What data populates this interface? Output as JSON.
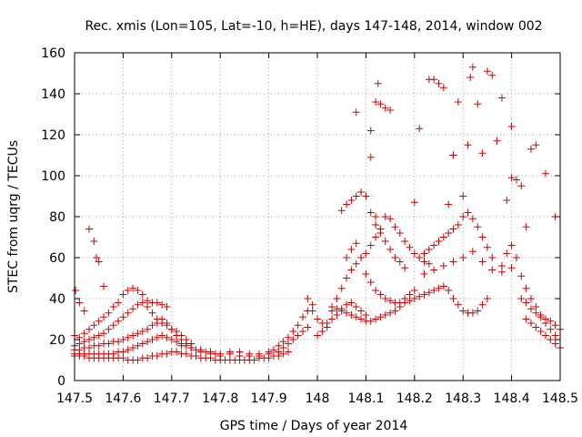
{
  "chart_data": {
    "type": "scatter",
    "title": "Rec. xmis (Lon=105, Lat=-10, h=HE), days 147-148, 2014, window 002",
    "xlabel": "GPS time / Days of year 2014",
    "ylabel": "STEC from uqrg / TECUs",
    "xlim": [
      147.5,
      148.5
    ],
    "ylim": [
      0,
      160
    ],
    "xticks": [
      147.5,
      147.6,
      147.7,
      147.8,
      147.9,
      148,
      148.1,
      148.2,
      148.3,
      148.4,
      148.5
    ],
    "xtick_labels": [
      "147.5",
      "147.6",
      "147.7",
      "147.8",
      "147.9",
      "148",
      "148.1",
      "148.2",
      "148.3",
      "148.4",
      "148.5"
    ],
    "yticks": [
      0,
      20,
      40,
      60,
      80,
      100,
      120,
      140,
      160
    ],
    "ytick_labels": [
      "0",
      "20",
      "40",
      "60",
      "80",
      "100",
      "120",
      "140",
      "160"
    ],
    "grid": true,
    "marker": "+",
    "color": "#cc0000",
    "points": [
      [
        147.502,
        44
      ],
      [
        147.51,
        38
      ],
      [
        147.52,
        34
      ],
      [
        147.53,
        74
      ],
      [
        147.54,
        68
      ],
      [
        147.545,
        60
      ],
      [
        147.55,
        58
      ],
      [
        147.56,
        46
      ],
      [
        147.5,
        22
      ],
      [
        147.51,
        21
      ],
      [
        147.52,
        23
      ],
      [
        147.53,
        25
      ],
      [
        147.54,
        27
      ],
      [
        147.55,
        29
      ],
      [
        147.56,
        31
      ],
      [
        147.57,
        33
      ],
      [
        147.58,
        36
      ],
      [
        147.59,
        38
      ],
      [
        147.6,
        42
      ],
      [
        147.61,
        44
      ],
      [
        147.62,
        45
      ],
      [
        147.63,
        44
      ],
      [
        147.64,
        42
      ],
      [
        147.65,
        39
      ],
      [
        147.66,
        38
      ],
      [
        147.67,
        38
      ],
      [
        147.68,
        37
      ],
      [
        147.69,
        36
      ],
      [
        147.5,
        17
      ],
      [
        147.51,
        18
      ],
      [
        147.52,
        19
      ],
      [
        147.53,
        20
      ],
      [
        147.54,
        21
      ],
      [
        147.55,
        22
      ],
      [
        147.56,
        23
      ],
      [
        147.57,
        25
      ],
      [
        147.58,
        27
      ],
      [
        147.59,
        29
      ],
      [
        147.6,
        31
      ],
      [
        147.61,
        33
      ],
      [
        147.62,
        35
      ],
      [
        147.63,
        37
      ],
      [
        147.64,
        38
      ],
      [
        147.65,
        36
      ],
      [
        147.66,
        33
      ],
      [
        147.67,
        30
      ],
      [
        147.68,
        28
      ],
      [
        147.69,
        27
      ],
      [
        147.7,
        25
      ],
      [
        147.71,
        24
      ],
      [
        147.72,
        22
      ],
      [
        147.73,
        20
      ],
      [
        147.74,
        18
      ],
      [
        147.5,
        15
      ],
      [
        147.51,
        15
      ],
      [
        147.52,
        16
      ],
      [
        147.53,
        16
      ],
      [
        147.54,
        17
      ],
      [
        147.55,
        17
      ],
      [
        147.56,
        18
      ],
      [
        147.57,
        18
      ],
      [
        147.58,
        19
      ],
      [
        147.59,
        19
      ],
      [
        147.6,
        20
      ],
      [
        147.61,
        21
      ],
      [
        147.62,
        22
      ],
      [
        147.63,
        23
      ],
      [
        147.64,
        24
      ],
      [
        147.65,
        25
      ],
      [
        147.66,
        27
      ],
      [
        147.67,
        28
      ],
      [
        147.68,
        30
      ],
      [
        147.69,
        28
      ],
      [
        147.7,
        25
      ],
      [
        147.71,
        22
      ],
      [
        147.72,
        20
      ],
      [
        147.73,
        18
      ],
      [
        147.74,
        16
      ],
      [
        147.5,
        13
      ],
      [
        147.51,
        13
      ],
      [
        147.52,
        13
      ],
      [
        147.53,
        13
      ],
      [
        147.54,
        13
      ],
      [
        147.55,
        13
      ],
      [
        147.56,
        13
      ],
      [
        147.57,
        13
      ],
      [
        147.58,
        13
      ],
      [
        147.59,
        14
      ],
      [
        147.6,
        14
      ],
      [
        147.61,
        15
      ],
      [
        147.62,
        16
      ],
      [
        147.63,
        17
      ],
      [
        147.64,
        18
      ],
      [
        147.65,
        19
      ],
      [
        147.66,
        20
      ],
      [
        147.67,
        21
      ],
      [
        147.68,
        22
      ],
      [
        147.69,
        21
      ],
      [
        147.7,
        20
      ],
      [
        147.71,
        19
      ],
      [
        147.72,
        18
      ],
      [
        147.73,
        17
      ],
      [
        147.74,
        16
      ],
      [
        147.75,
        15
      ],
      [
        147.76,
        14
      ],
      [
        147.77,
        14
      ],
      [
        147.78,
        13
      ],
      [
        147.79,
        13
      ],
      [
        147.8,
        12
      ],
      [
        147.5,
        12
      ],
      [
        147.51,
        12
      ],
      [
        147.52,
        12
      ],
      [
        147.53,
        11
      ],
      [
        147.54,
        11
      ],
      [
        147.55,
        11
      ],
      [
        147.56,
        11
      ],
      [
        147.57,
        11
      ],
      [
        147.58,
        11
      ],
      [
        147.59,
        11
      ],
      [
        147.6,
        11
      ],
      [
        147.61,
        10
      ],
      [
        147.62,
        10
      ],
      [
        147.63,
        10
      ],
      [
        147.64,
        11
      ],
      [
        147.65,
        11
      ],
      [
        147.66,
        12
      ],
      [
        147.67,
        12
      ],
      [
        147.68,
        13
      ],
      [
        147.69,
        13
      ],
      [
        147.7,
        14
      ],
      [
        147.71,
        14
      ],
      [
        147.72,
        13
      ],
      [
        147.73,
        13
      ],
      [
        147.74,
        12
      ],
      [
        147.75,
        12
      ],
      [
        147.76,
        11
      ],
      [
        147.77,
        11
      ],
      [
        147.78,
        11
      ],
      [
        147.79,
        10
      ],
      [
        147.8,
        10
      ],
      [
        147.81,
        10
      ],
      [
        147.82,
        10
      ],
      [
        147.83,
        10
      ],
      [
        147.84,
        10
      ],
      [
        147.85,
        10
      ],
      [
        147.86,
        10
      ],
      [
        147.87,
        10
      ],
      [
        147.88,
        11
      ],
      [
        147.89,
        11
      ],
      [
        147.9,
        11
      ],
      [
        147.91,
        12
      ],
      [
        147.92,
        12
      ],
      [
        147.93,
        13
      ],
      [
        147.94,
        14
      ],
      [
        147.72,
        17
      ],
      [
        147.74,
        16
      ],
      [
        147.76,
        15
      ],
      [
        147.78,
        14
      ],
      [
        147.8,
        13
      ],
      [
        147.82,
        13
      ],
      [
        147.84,
        12
      ],
      [
        147.86,
        12
      ],
      [
        147.88,
        12
      ],
      [
        147.9,
        13
      ],
      [
        147.92,
        14
      ],
      [
        147.93,
        16
      ],
      [
        147.94,
        18
      ],
      [
        147.95,
        20
      ],
      [
        147.96,
        22
      ],
      [
        147.97,
        24
      ],
      [
        147.98,
        26
      ],
      [
        147.82,
        14
      ],
      [
        147.84,
        14
      ],
      [
        147.86,
        13
      ],
      [
        147.88,
        13
      ],
      [
        147.9,
        14
      ],
      [
        147.91,
        15
      ],
      [
        147.92,
        17
      ],
      [
        147.93,
        19
      ],
      [
        147.94,
        21
      ],
      [
        147.95,
        24
      ],
      [
        147.96,
        27
      ],
      [
        147.97,
        31
      ],
      [
        147.98,
        34
      ],
      [
        147.99,
        37
      ],
      [
        147.98,
        40
      ],
      [
        147.99,
        34
      ],
      [
        148.0,
        30
      ],
      [
        148.01,
        28
      ],
      [
        148.02,
        26
      ],
      [
        148.03,
        30
      ],
      [
        148.04,
        32
      ],
      [
        148.05,
        35
      ],
      [
        148.06,
        37
      ],
      [
        148.07,
        38
      ],
      [
        148.08,
        36
      ],
      [
        148.09,
        34
      ],
      [
        148.1,
        32
      ],
      [
        148.0,
        22
      ],
      [
        148.01,
        24
      ],
      [
        148.02,
        28
      ],
      [
        148.03,
        34
      ],
      [
        148.04,
        40
      ],
      [
        148.05,
        45
      ],
      [
        148.06,
        50
      ],
      [
        148.07,
        54
      ],
      [
        148.08,
        57
      ],
      [
        148.09,
        60
      ],
      [
        148.1,
        62
      ],
      [
        148.11,
        66
      ],
      [
        148.12,
        70
      ],
      [
        148.13,
        74
      ],
      [
        148.05,
        83
      ],
      [
        148.06,
        86
      ],
      [
        148.07,
        88
      ],
      [
        148.08,
        90
      ],
      [
        148.09,
        92
      ],
      [
        148.1,
        90
      ],
      [
        148.11,
        82
      ],
      [
        148.12,
        76
      ],
      [
        148.13,
        72
      ],
      [
        148.14,
        68
      ],
      [
        148.15,
        64
      ],
      [
        148.16,
        60
      ],
      [
        148.17,
        58
      ],
      [
        148.18,
        55
      ],
      [
        148.06,
        60
      ],
      [
        148.07,
        64
      ],
      [
        148.08,
        67
      ],
      [
        148.09,
        60
      ],
      [
        148.1,
        52
      ],
      [
        148.11,
        48
      ],
      [
        148.12,
        44
      ],
      [
        148.13,
        42
      ],
      [
        148.14,
        40
      ],
      [
        148.15,
        39
      ],
      [
        148.16,
        38
      ],
      [
        148.17,
        38
      ],
      [
        148.18,
        40
      ],
      [
        148.19,
        42
      ],
      [
        148.2,
        44
      ],
      [
        148.03,
        36
      ],
      [
        148.04,
        35
      ],
      [
        148.05,
        34
      ],
      [
        148.06,
        33
      ],
      [
        148.07,
        32
      ],
      [
        148.08,
        31
      ],
      [
        148.09,
        30
      ],
      [
        148.1,
        29
      ],
      [
        148.11,
        29
      ],
      [
        148.12,
        30
      ],
      [
        148.13,
        31
      ],
      [
        148.14,
        32
      ],
      [
        148.15,
        33
      ],
      [
        148.16,
        34
      ],
      [
        148.17,
        36
      ],
      [
        148.18,
        38
      ],
      [
        148.19,
        39
      ],
      [
        148.2,
        40
      ],
      [
        148.21,
        41
      ],
      [
        148.22,
        42
      ],
      [
        148.23,
        43
      ],
      [
        148.24,
        44
      ],
      [
        148.25,
        45
      ],
      [
        148.26,
        46
      ],
      [
        148.27,
        44
      ],
      [
        148.28,
        40
      ],
      [
        148.29,
        37
      ],
      [
        148.3,
        34
      ],
      [
        148.31,
        33
      ],
      [
        148.32,
        33
      ],
      [
        148.33,
        34
      ],
      [
        148.34,
        37
      ],
      [
        148.35,
        40
      ],
      [
        148.08,
        131
      ],
      [
        148.1,
        90
      ],
      [
        148.11,
        122
      ],
      [
        148.11,
        109
      ],
      [
        148.12,
        136
      ],
      [
        148.125,
        145
      ],
      [
        148.13,
        135
      ],
      [
        148.14,
        133
      ],
      [
        148.15,
        132
      ],
      [
        148.12,
        80
      ],
      [
        148.14,
        80
      ],
      [
        148.15,
        79
      ],
      [
        148.16,
        75
      ],
      [
        148.17,
        72
      ],
      [
        148.18,
        68
      ],
      [
        148.19,
        65
      ],
      [
        148.2,
        62
      ],
      [
        148.21,
        60
      ],
      [
        148.22,
        58
      ],
      [
        148.23,
        57
      ],
      [
        148.2,
        87
      ],
      [
        148.21,
        123
      ],
      [
        148.23,
        147
      ],
      [
        148.24,
        147
      ],
      [
        148.25,
        145
      ],
      [
        148.26,
        143
      ],
      [
        148.27,
        86
      ],
      [
        148.28,
        110
      ],
      [
        148.29,
        136
      ],
      [
        148.3,
        90
      ],
      [
        148.31,
        115
      ],
      [
        148.315,
        148
      ],
      [
        148.32,
        153
      ],
      [
        148.33,
        135
      ],
      [
        148.34,
        111
      ],
      [
        148.35,
        151
      ],
      [
        148.36,
        149
      ],
      [
        148.37,
        117
      ],
      [
        148.38,
        138
      ],
      [
        148.39,
        88
      ],
      [
        148.4,
        124
      ],
      [
        148.22,
        62
      ],
      [
        148.23,
        64
      ],
      [
        148.24,
        66
      ],
      [
        148.25,
        68
      ],
      [
        148.26,
        70
      ],
      [
        148.27,
        72
      ],
      [
        148.28,
        74
      ],
      [
        148.29,
        76
      ],
      [
        148.3,
        80
      ],
      [
        148.31,
        82
      ],
      [
        148.32,
        79
      ],
      [
        148.33,
        75
      ],
      [
        148.34,
        70
      ],
      [
        148.35,
        65
      ],
      [
        148.36,
        60
      ],
      [
        148.22,
        52
      ],
      [
        148.24,
        54
      ],
      [
        148.26,
        56
      ],
      [
        148.28,
        58
      ],
      [
        148.3,
        60
      ],
      [
        148.32,
        63
      ],
      [
        148.34,
        58
      ],
      [
        148.36,
        54
      ],
      [
        148.38,
        53
      ],
      [
        148.4,
        55
      ],
      [
        148.38,
        56
      ],
      [
        148.39,
        62
      ],
      [
        148.4,
        66
      ],
      [
        148.41,
        60
      ],
      [
        148.42,
        51
      ],
      [
        148.43,
        45
      ],
      [
        148.44,
        40
      ],
      [
        148.45,
        36
      ],
      [
        148.46,
        32
      ],
      [
        148.47,
        28
      ],
      [
        148.48,
        25
      ],
      [
        148.49,
        22
      ],
      [
        148.4,
        99
      ],
      [
        148.41,
        98
      ],
      [
        148.42,
        95
      ],
      [
        148.43,
        75
      ],
      [
        148.44,
        113
      ],
      [
        148.45,
        115
      ],
      [
        148.47,
        101
      ],
      [
        148.49,
        80
      ],
      [
        148.42,
        40
      ],
      [
        148.43,
        38
      ],
      [
        148.44,
        35
      ],
      [
        148.45,
        33
      ],
      [
        148.46,
        31
      ],
      [
        148.47,
        30
      ],
      [
        148.48,
        29
      ],
      [
        148.49,
        27
      ],
      [
        148.5,
        25
      ],
      [
        148.43,
        30
      ],
      [
        148.44,
        28
      ],
      [
        148.45,
        26
      ],
      [
        148.46,
        24
      ],
      [
        148.47,
        22
      ],
      [
        148.48,
        20
      ],
      [
        148.49,
        18
      ],
      [
        148.5,
        16
      ]
    ]
  }
}
